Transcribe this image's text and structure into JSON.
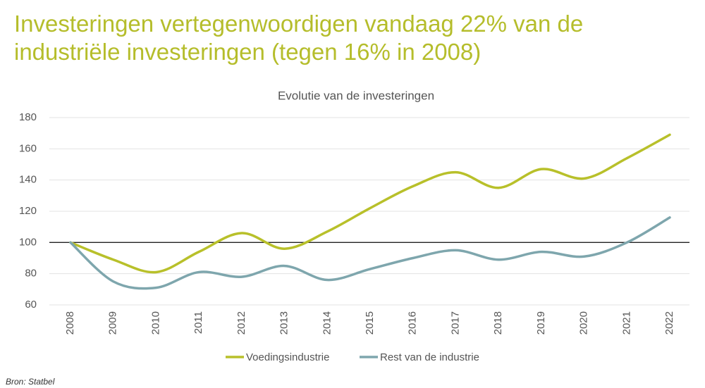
{
  "chart_data": {
    "type": "line",
    "title": "Investeringen vertegenwoordigen vandaag 22% van de industriële investeringen (tegen 16% in 2008)",
    "subtitle": "Evolutie van de investeringen",
    "source": "Bron: Statbel",
    "categories": [
      "2008",
      "2009",
      "2010",
      "2011",
      "2012",
      "2013",
      "2014",
      "2015",
      "2016",
      "2017",
      "2018",
      "2019",
      "2020",
      "2021",
      "2022"
    ],
    "series": [
      {
        "name": "Voedingsindustrie",
        "color": "#b8c02a",
        "values": [
          100,
          89,
          81,
          94,
          106,
          96,
          107,
          122,
          136,
          145,
          135,
          147,
          141,
          154,
          169
        ]
      },
      {
        "name": "Rest van de industrie",
        "color": "#7ea6ad",
        "values": [
          100,
          75,
          71,
          81,
          78,
          85,
          76,
          83,
          90,
          95,
          89,
          94,
          91,
          100,
          116
        ]
      }
    ],
    "reference_line": 100,
    "ylim": [
      60,
      180
    ],
    "yticks": [
      60,
      80,
      100,
      120,
      140,
      160,
      180
    ],
    "grid": true,
    "smooth": true,
    "legend": "bottom"
  }
}
